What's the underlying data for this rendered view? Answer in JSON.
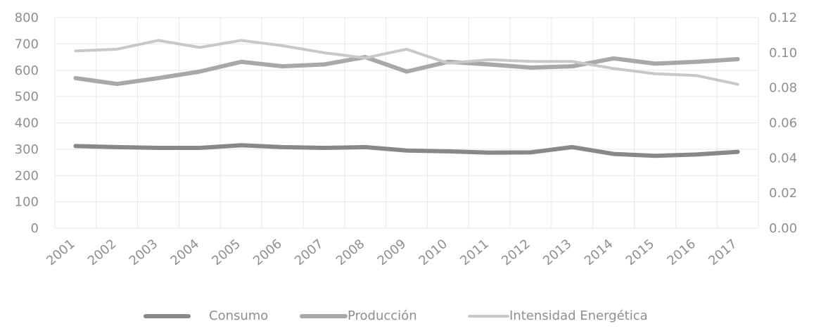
{
  "chart_data": {
    "type": "line",
    "title": "",
    "xlabel": "",
    "ylabel": "",
    "y2label": "",
    "grid": true,
    "legend_position": "bottom",
    "categories": [
      "2001",
      "2002",
      "2003",
      "2004",
      "2005",
      "2006",
      "2007",
      "2008",
      "2009",
      "2010",
      "2011",
      "2012",
      "2013",
      "2014",
      "2015",
      "2016",
      "2017"
    ],
    "y_axis": {
      "min": 0,
      "max": 800,
      "ticks": [
        "0",
        "100",
        "200",
        "300",
        "400",
        "500",
        "600",
        "700",
        "800"
      ]
    },
    "y2_axis": {
      "min": 0,
      "max": 0.12,
      "ticks": [
        "0.00",
        "0.02",
        "0.04",
        "0.06",
        "0.08",
        "0.10",
        "0.12"
      ]
    },
    "series": [
      {
        "name": "Consumo",
        "axis": "left",
        "color": "#888888",
        "values": [
          312,
          308,
          305,
          305,
          315,
          308,
          305,
          308,
          295,
          292,
          287,
          288,
          308,
          282,
          275,
          280,
          290
        ]
      },
      {
        "name": "Producción",
        "axis": "left",
        "color": "#a8a8a8",
        "values": [
          570,
          548,
          570,
          595,
          632,
          615,
          622,
          650,
          595,
          632,
          622,
          610,
          615,
          645,
          625,
          632,
          642
        ]
      },
      {
        "name": "Intensidad Energética",
        "axis": "right",
        "color": "#c8c8c8",
        "values": [
          0.101,
          0.102,
          0.107,
          0.103,
          0.107,
          0.104,
          0.1,
          0.097,
          0.102,
          0.094,
          0.096,
          0.095,
          0.095,
          0.091,
          0.088,
          0.087,
          0.082
        ]
      }
    ]
  }
}
